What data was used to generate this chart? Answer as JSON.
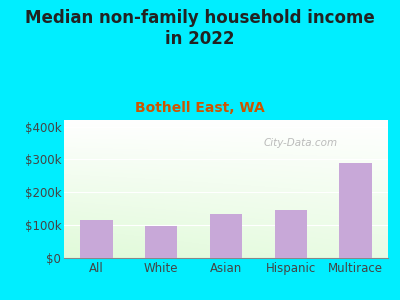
{
  "title": "Median non-family household income\nin 2022",
  "subtitle": "Bothell East, WA",
  "categories": [
    "All",
    "White",
    "Asian",
    "Hispanic",
    "Multirace"
  ],
  "values": [
    115000,
    97000,
    135000,
    145000,
    290000
  ],
  "bar_color": "#c8a8d8",
  "title_fontsize": 12,
  "subtitle_fontsize": 10,
  "subtitle_color": "#cc5500",
  "title_color": "#222222",
  "background_outer": "#00eeff",
  "ylim": [
    0,
    420000
  ],
  "yticks": [
    0,
    100000,
    200000,
    300000,
    400000
  ],
  "watermark": "City-Data.com",
  "xlabel_color": "#444444",
  "tick_color": "#444444"
}
